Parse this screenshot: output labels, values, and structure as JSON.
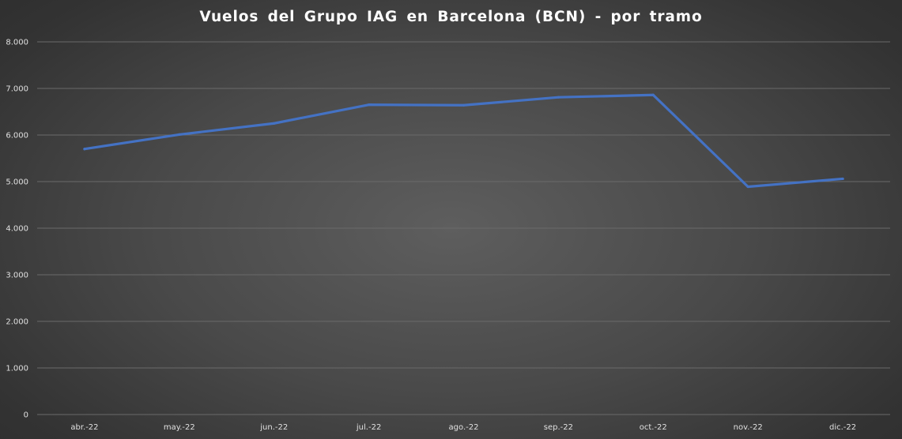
{
  "chart_data": {
    "type": "line",
    "title": "Vuelos  del Grupo  IAG en Barcelona  (BCN) - por tramo",
    "xlabel": "",
    "ylabel": "",
    "categories": [
      "abr.-22",
      "may.-22",
      "jun.-22",
      "jul.-22",
      "ago.-22",
      "sep.-22",
      "oct.-22",
      "nov.-22",
      "dic.-22"
    ],
    "series": [
      {
        "values": [
          5700,
          6010,
          6250,
          6650,
          6640,
          6810,
          6860,
          4890,
          5060
        ],
        "color": "#4472c4"
      }
    ],
    "ylim": [
      0,
      8000
    ],
    "yticks": [
      0,
      1000,
      2000,
      3000,
      4000,
      5000,
      6000,
      7000,
      8000
    ],
    "ytick_labels": [
      "0",
      "1.000",
      "2.000",
      "3.000",
      "4.000",
      "5.000",
      "6.000",
      "7.000",
      "8.000"
    ],
    "grid": true,
    "legend": "none"
  }
}
